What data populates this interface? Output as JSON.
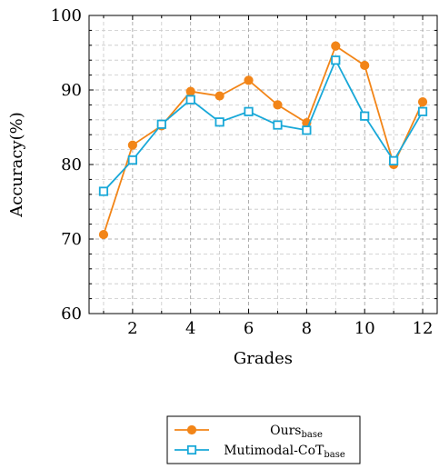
{
  "chart_data": {
    "type": "line",
    "title": "",
    "xlabel": "Grades",
    "ylabel": "Accuracy(%)",
    "xlim": [
      0.5,
      12.5
    ],
    "ylim": [
      60,
      100
    ],
    "x_ticks": [
      2,
      4,
      6,
      8,
      10,
      12
    ],
    "y_ticks": [
      60,
      70,
      80,
      90,
      100
    ],
    "grid": true,
    "legend_position": "bottom-center, below plot",
    "x": [
      1,
      2,
      3,
      4,
      5,
      6,
      7,
      8,
      9,
      10,
      11,
      12
    ],
    "series": [
      {
        "name": "Ours",
        "name_sub": "base",
        "color": "#f28518",
        "marker": "circle",
        "values": [
          70.6,
          82.6,
          85.2,
          89.8,
          89.2,
          91.3,
          88.0,
          85.6,
          95.9,
          93.3,
          80.0,
          88.4
        ]
      },
      {
        "name": "Mutimodal-CoT",
        "name_sub": "base",
        "color": "#18a8d8",
        "marker": "square",
        "values": [
          76.4,
          80.6,
          85.4,
          88.7,
          85.7,
          87.1,
          85.3,
          84.6,
          94.0,
          86.5,
          80.5,
          87.1
        ]
      }
    ]
  }
}
